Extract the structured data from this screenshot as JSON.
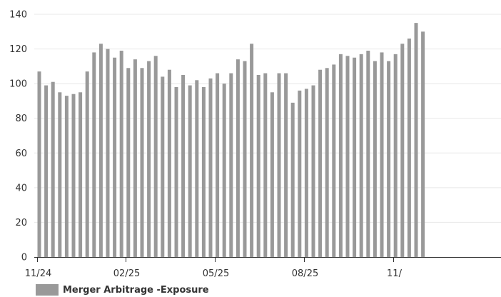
{
  "chart_data": {
    "type": "bar",
    "title": "",
    "xlabel": "",
    "ylabel": "",
    "ylim": [
      0,
      140
    ],
    "yticks": [
      0,
      20,
      40,
      60,
      80,
      100,
      120,
      140
    ],
    "grid": "horizontal",
    "legend_position": "bottom-left",
    "x_tick_labels": [
      "11/24",
      "02/25",
      "05/25",
      "08/25",
      "11/"
    ],
    "series": [
      {
        "name": "Merger Arbitrage -Exposure",
        "color": "#999999",
        "values": [
          107,
          99,
          101,
          95,
          93,
          94,
          95,
          107,
          118,
          123,
          120,
          115,
          119,
          109,
          114,
          109,
          113,
          116,
          104,
          108,
          98,
          105,
          99,
          102,
          98,
          103,
          106,
          100,
          106,
          114,
          113,
          123,
          105,
          106,
          95,
          106,
          106,
          89,
          96,
          97,
          99,
          108,
          109,
          111,
          117,
          116,
          115,
          117,
          119,
          113,
          118,
          113,
          117,
          123,
          126,
          135,
          130
        ]
      }
    ]
  },
  "legend": {
    "label": "Merger Arbitrage -Exposure"
  }
}
